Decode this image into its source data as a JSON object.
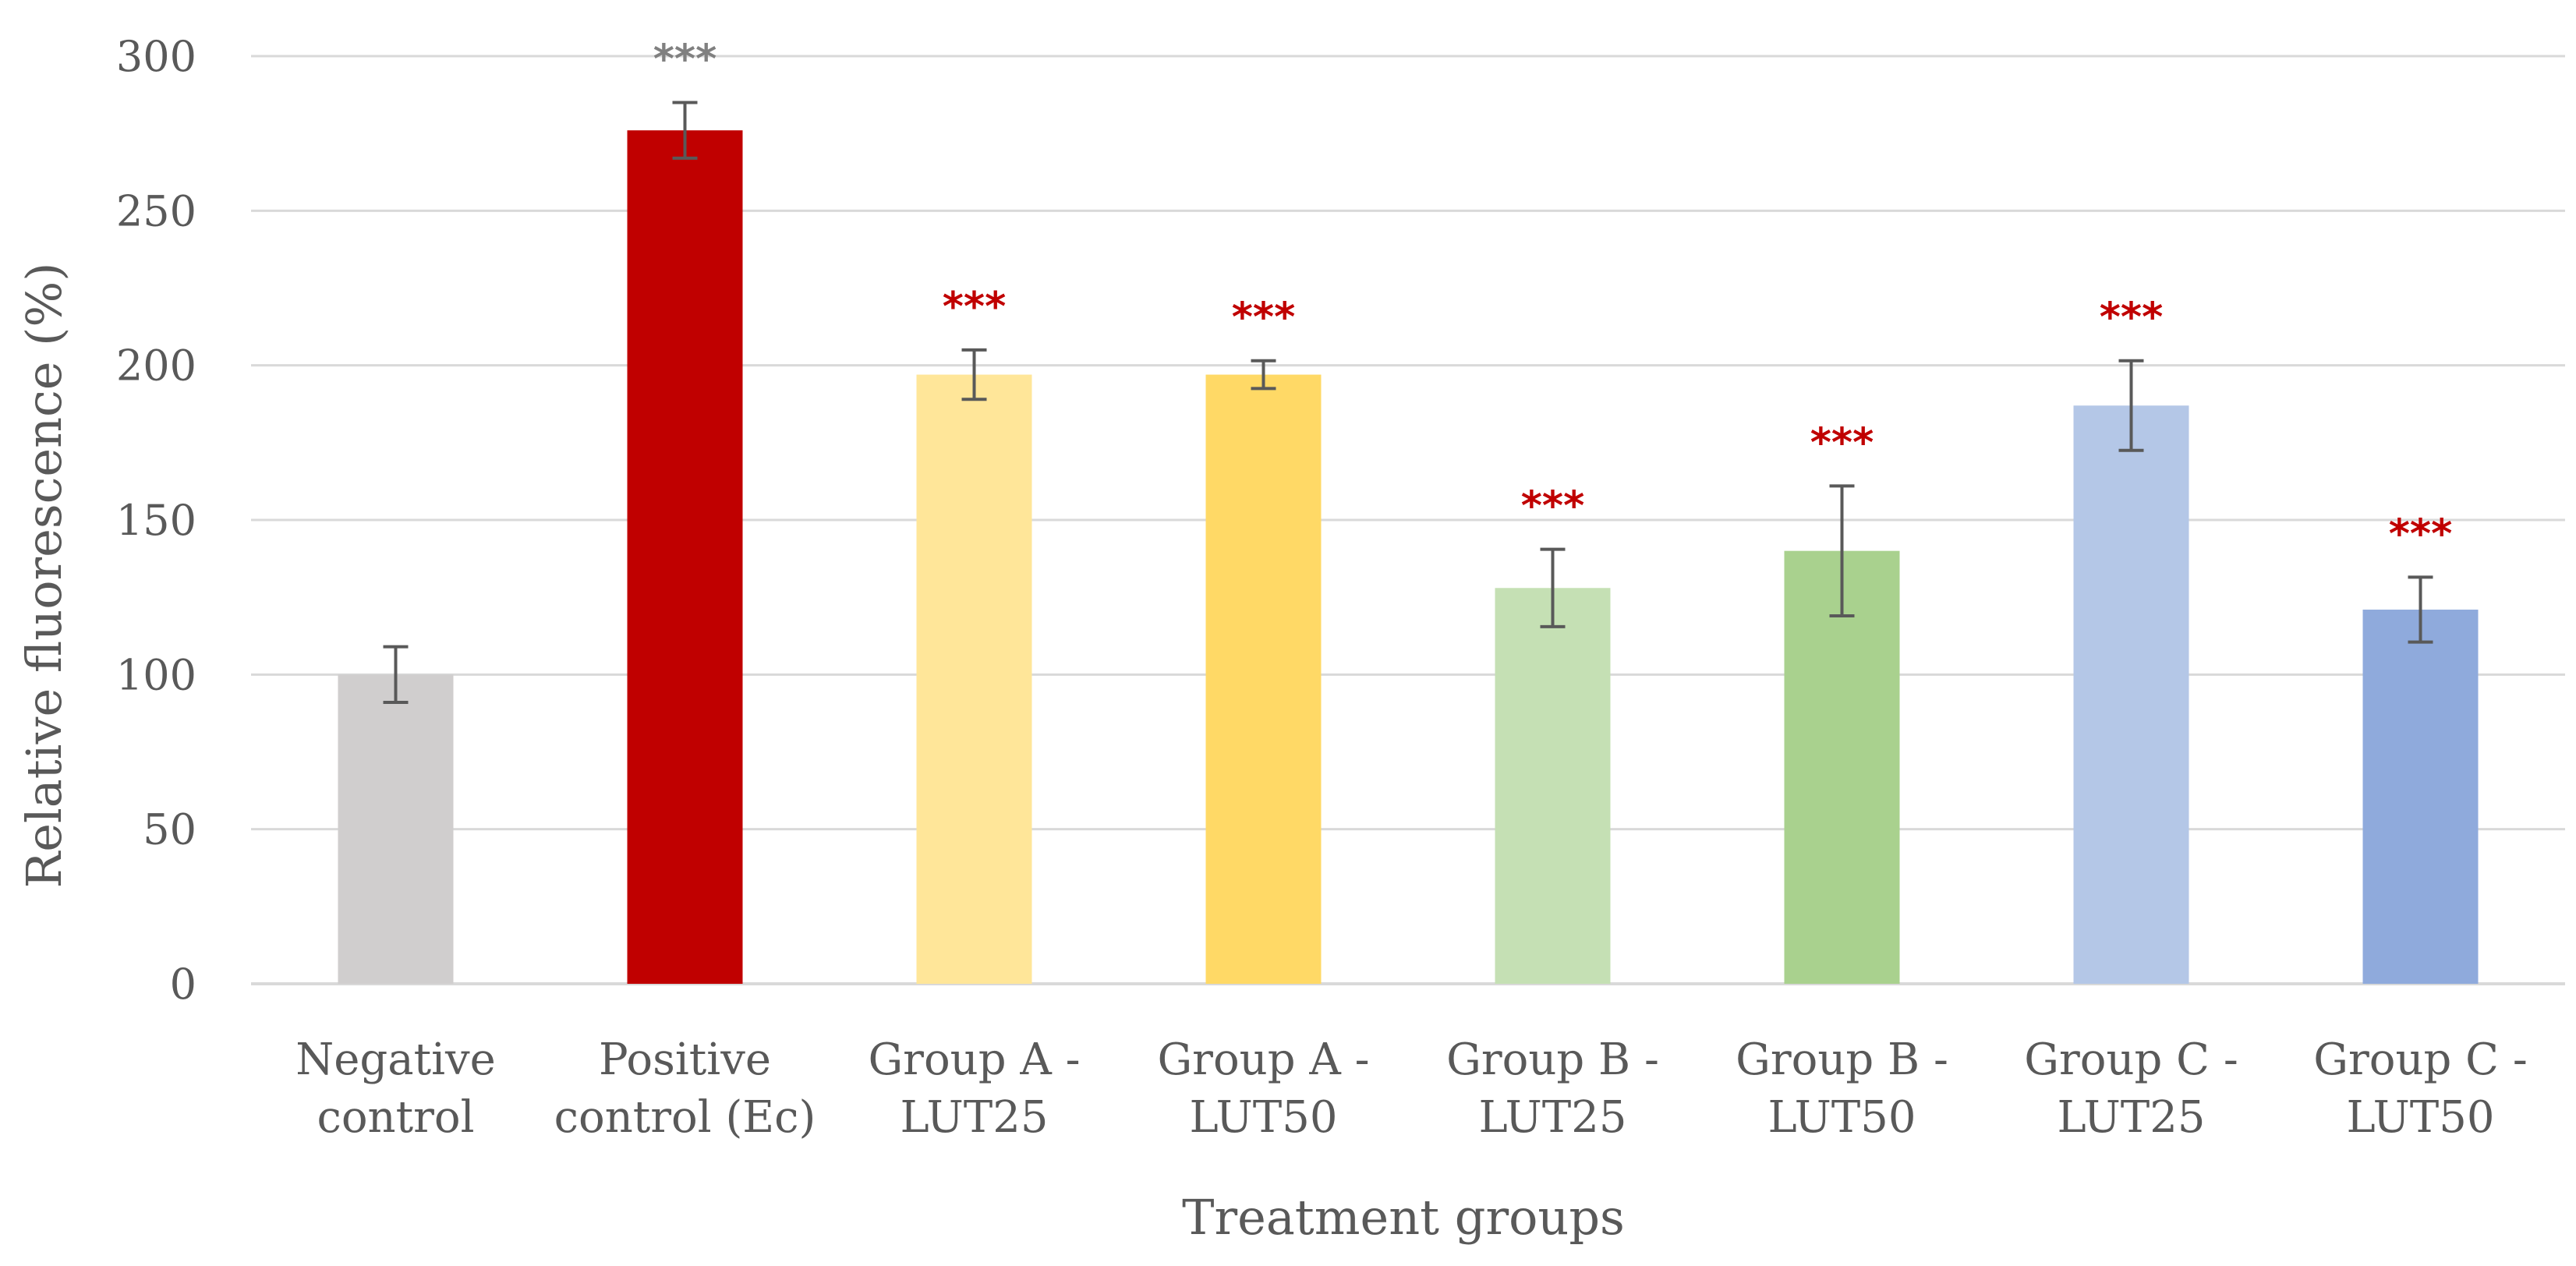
{
  "chart_data": {
    "type": "bar",
    "title": "",
    "xlabel": "Treatment groups",
    "ylabel": "Relative fluorescence (%)",
    "ylim": [
      0,
      300
    ],
    "yticks": [
      "0",
      "50",
      "100",
      "150",
      "200",
      "250",
      "300"
    ],
    "grid": true,
    "categories": [
      [
        "Negative",
        "control"
      ],
      [
        "Positive",
        "control (Ec)"
      ],
      [
        "Group A -",
        "LUT25"
      ],
      [
        "Group A -",
        "LUT50"
      ],
      [
        "Group B -",
        "LUT25"
      ],
      [
        "Group B -",
        "LUT50"
      ],
      [
        "Group C -",
        "LUT25"
      ],
      [
        "Group C -",
        "LUT50"
      ]
    ],
    "values": [
      100,
      276,
      197,
      197,
      128,
      140,
      187,
      121
    ],
    "errors": [
      9,
      9,
      8,
      4.5,
      12.5,
      21,
      14.5,
      10.5
    ],
    "significance": [
      "",
      "***",
      "***",
      "***",
      "***",
      "***",
      "***",
      "***"
    ],
    "bar_colors": [
      "#d0cece",
      "#c00000",
      "#ffe699",
      "#ffd966",
      "#c5e0b4",
      "#a9d18e",
      "#b4c7e7",
      "#8faadc"
    ],
    "significance_colors": [
      "",
      "#808080",
      "#c00000",
      "#c00000",
      "#c00000",
      "#c00000",
      "#c00000",
      "#c00000"
    ]
  }
}
